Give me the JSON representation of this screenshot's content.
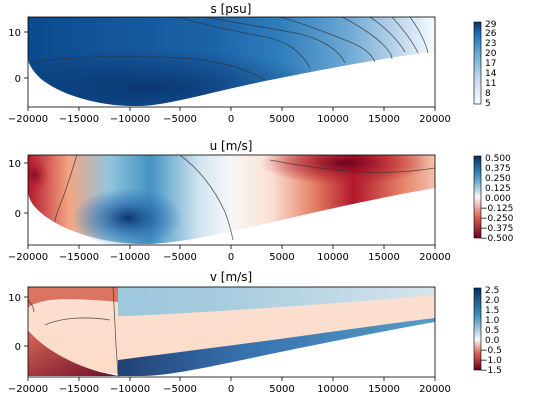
{
  "chart_data": [
    {
      "type": "contour",
      "title": "s [psu]",
      "xlabel": "",
      "ylabel": "",
      "xlim": [
        -20000,
        20000
      ],
      "ylim": [
        -6,
        12
      ],
      "xticks": [
        "−20000",
        "−15000",
        "−10000",
        "−5000",
        "0",
        "5000",
        "10000",
        "15000",
        "20000"
      ],
      "yticks": [
        "10",
        "0"
      ],
      "colormap": "Blues",
      "colorbar": {
        "ticks": [
          "29",
          "26",
          "23",
          "20",
          "17",
          "14",
          "11",
          "8",
          "5"
        ],
        "min": 5,
        "max": 29
      }
    },
    {
      "type": "contour",
      "title": "u [m/s]",
      "xlabel": "",
      "ylabel": "",
      "xlim": [
        -20000,
        20000
      ],
      "ylim": [
        -6,
        12
      ],
      "xticks": [
        "−20000",
        "−15000",
        "−10000",
        "−5000",
        "0",
        "5000",
        "10000",
        "15000",
        "20000"
      ],
      "yticks": [
        "10",
        "0"
      ],
      "colormap": "RdBu",
      "colorbar": {
        "ticks": [
          "0.500",
          "0.375",
          "0.250",
          "0.125",
          "0.000",
          "−0.125",
          "−0.250",
          "−0.375",
          "−0.500"
        ],
        "min": -0.5,
        "max": 0.5
      }
    },
    {
      "type": "contour",
      "title": "v [m/s]",
      "xlabel": "",
      "ylabel": "",
      "xlim": [
        -20000,
        20000
      ],
      "ylim": [
        -6,
        12
      ],
      "xticks": [
        "−20000",
        "−15000",
        "−10000",
        "−5000",
        "0",
        "5000",
        "10000",
        "15000",
        "20000"
      ],
      "yticks": [
        "10",
        "0"
      ],
      "colormap": "RdBu",
      "colorbar": {
        "ticks": [
          "2.5",
          "2.0",
          "1.5",
          "1.0",
          "0.5",
          "0.0",
          "−0.5",
          "−1.0",
          "−1.5"
        ],
        "min": -1.5,
        "max": 2.5
      }
    }
  ]
}
